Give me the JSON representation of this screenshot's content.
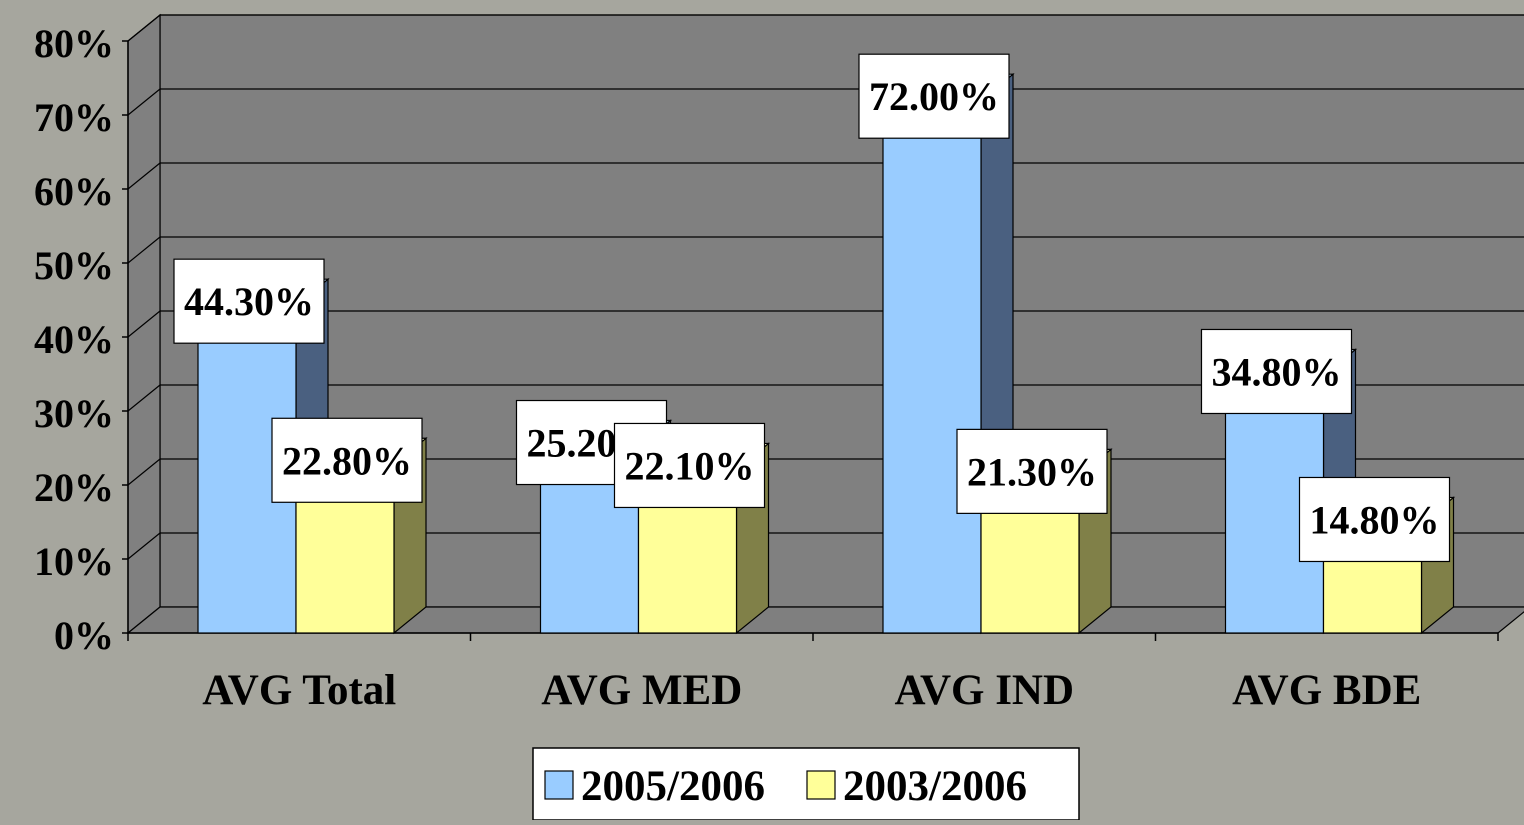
{
  "colors": {
    "background": "#a6a69e",
    "wall": "#808080",
    "floor": "#7f7f7f",
    "gridline": "#000000",
    "series_2005_2006": {
      "front": "#99ccff",
      "side": "#4a6080",
      "top": "#bcdcff"
    },
    "series_2003_2006": {
      "front": "#ffff99",
      "side": "#808048",
      "top": "#ffffcc"
    },
    "label_box": "#ffffff"
  },
  "chart_data": {
    "type": "bar",
    "style": "3d-clustered-column",
    "categories": [
      "AVG Total",
      "AVG MED",
      "AVG IND",
      "AVG BDE"
    ],
    "series": [
      {
        "name": "2005/2006",
        "values": [
          44.3,
          25.2,
          72.0,
          34.8
        ],
        "labels": [
          "44.30%",
          "25.20%",
          "72.00%",
          "34.80%"
        ]
      },
      {
        "name": "2003/2006",
        "values": [
          22.8,
          22.1,
          21.3,
          14.8
        ],
        "labels": [
          "22.80%",
          "22.10%",
          "21.30%",
          "14.80%"
        ]
      }
    ],
    "ylim": [
      0,
      80
    ],
    "yticks": [
      0,
      10,
      20,
      30,
      40,
      50,
      60,
      70,
      80
    ],
    "ytick_labels": [
      "0%",
      "10%",
      "20%",
      "30%",
      "40%",
      "50%",
      "60%",
      "70%",
      "80%"
    ],
    "grid": true,
    "legend_position": "bottom",
    "title": "",
    "xlabel": "",
    "ylabel": ""
  }
}
